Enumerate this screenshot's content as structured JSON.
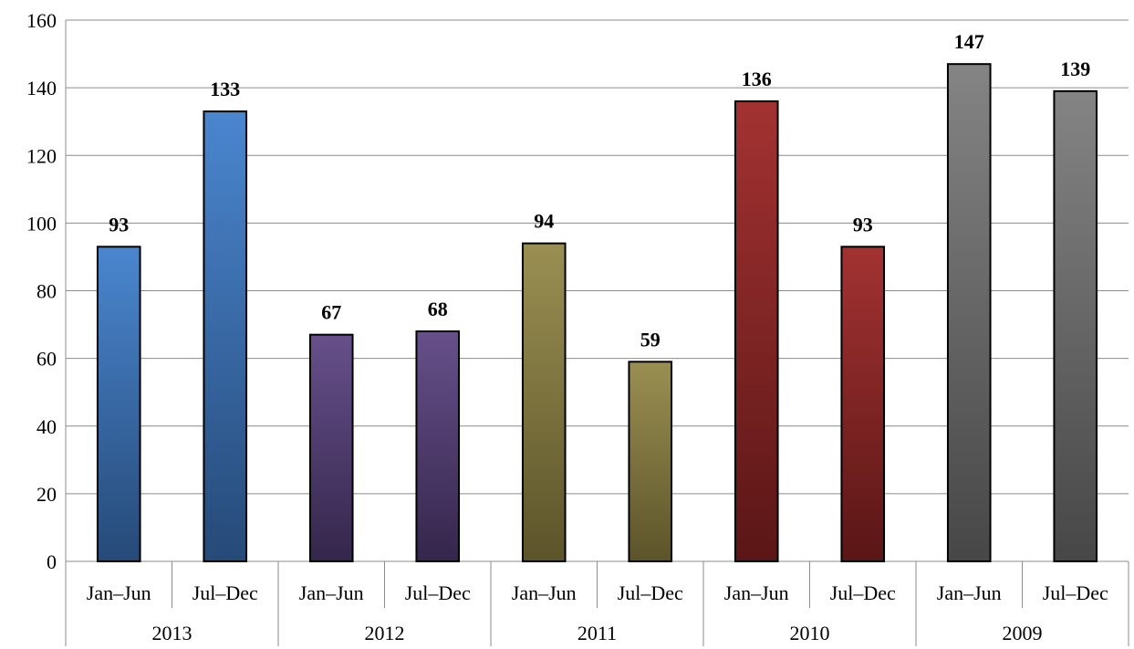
{
  "chart_data": {
    "type": "bar",
    "title": "",
    "xlabel": "",
    "ylabel": "",
    "ylim": [
      0,
      160
    ],
    "yticks": [
      "0",
      "20",
      "40",
      "60",
      "80",
      "100",
      "120",
      "140",
      "160"
    ],
    "grid": true,
    "legend": "none",
    "groups": [
      {
        "label": "2013",
        "color_top": "#4a86cf",
        "color_bottom": "#264a78",
        "bars": [
          {
            "category": "Jan–Jun",
            "value": 93,
            "data_label": "93"
          },
          {
            "category": "Jul–Dec",
            "value": 133,
            "data_label": "133"
          }
        ]
      },
      {
        "label": "2012",
        "color_top": "#67508a",
        "color_bottom": "#34264c",
        "bars": [
          {
            "category": "Jan–Jun",
            "value": 67,
            "data_label": "67"
          },
          {
            "category": "Jul–Dec",
            "value": 68,
            "data_label": "68"
          }
        ]
      },
      {
        "label": "2011",
        "color_top": "#9a8f52",
        "color_bottom": "#5c542a",
        "bars": [
          {
            "category": "Jan–Jun",
            "value": 94,
            "data_label": "94"
          },
          {
            "category": "Jul–Dec",
            "value": 59,
            "data_label": "59"
          }
        ]
      },
      {
        "label": "2010",
        "color_top": "#a33232",
        "color_bottom": "#5a1616",
        "bars": [
          {
            "category": "Jan–Jun",
            "value": 136,
            "data_label": "136"
          },
          {
            "category": "Jul–Dec",
            "value": 93,
            "data_label": "93"
          }
        ]
      },
      {
        "label": "2009",
        "color_top": "#848484",
        "color_bottom": "#474747",
        "bars": [
          {
            "category": "Jan–Jun",
            "value": 147,
            "data_label": "147"
          },
          {
            "category": "Jul–Dec",
            "value": 139,
            "data_label": "139"
          }
        ]
      }
    ]
  }
}
